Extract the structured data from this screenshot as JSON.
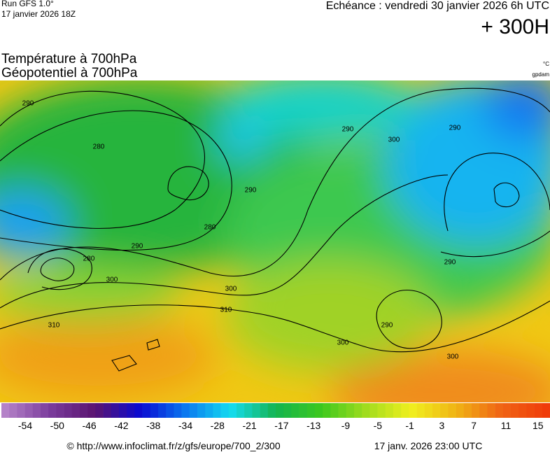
{
  "header": {
    "run": "Run GFS 1.0°",
    "run_date": "17 janvier 2026 18Z",
    "echeance": "Echéance : vendredi 30 janvier 2026 6h UTC",
    "horizon": "+ 300H",
    "title_1": "Température à 700hPa",
    "title_2": "Géopotentiel à 700hPa",
    "unit_temp": "°C",
    "unit_geo": "gpdam"
  },
  "map": {
    "contour_labels": [
      290,
      280,
      290,
      280,
      290,
      280,
      300,
      300,
      310,
      310,
      300,
      300,
      290,
      290,
      300,
      290,
      290
    ]
  },
  "colorbar": {
    "colors": [
      "#b482c8",
      "#7a3c9c",
      "#5a1470",
      "#0a0ad2",
      "#0a78f0",
      "#14dcf0",
      "#14b450",
      "#3cc81e",
      "#a0dc1e",
      "#f0f01e",
      "#f0b414",
      "#f06414",
      "#f03c0a"
    ],
    "labels": [
      -54,
      -50,
      -46,
      -42,
      -38,
      -34,
      -28,
      -21,
      -17,
      -13,
      -9,
      -5,
      -1,
      3,
      7,
      11,
      15
    ]
  },
  "footer": {
    "url": "© http://www.infoclimat.fr/z/gfs/europe/700_2/300",
    "date": "17 janv. 2026 23:00 UTC"
  }
}
